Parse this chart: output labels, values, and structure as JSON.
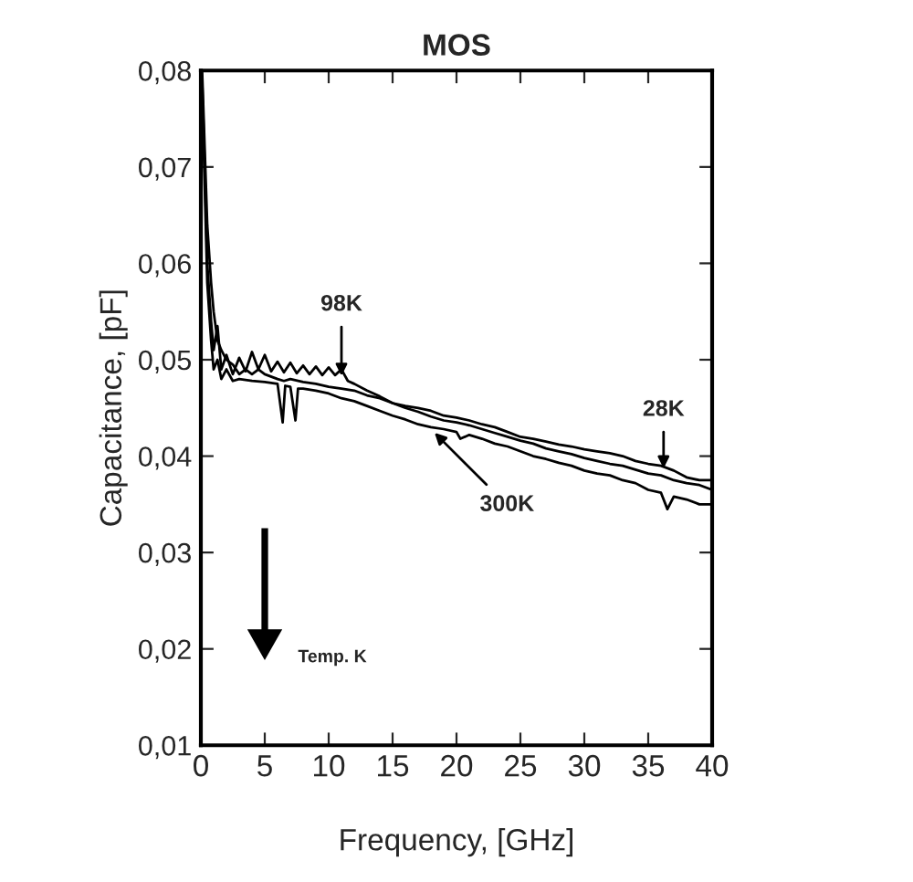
{
  "chart_data": {
    "type": "line",
    "title": "MOS",
    "xlabel": "Frequency, [GHz]",
    "ylabel": "Capacitance, [pF]",
    "xlim": [
      0,
      40
    ],
    "ylim": [
      0.01,
      0.08
    ],
    "xticks": [
      0,
      5,
      10,
      15,
      20,
      25,
      30,
      35,
      40
    ],
    "yticks": [
      {
        "value": 0.01,
        "label": "0,01"
      },
      {
        "value": 0.02,
        "label": "0,02"
      },
      {
        "value": 0.03,
        "label": "0,03"
      },
      {
        "value": 0.04,
        "label": "0,04"
      },
      {
        "value": 0.05,
        "label": "0,05"
      },
      {
        "value": 0.06,
        "label": "0,06"
      },
      {
        "value": 0.07,
        "label": "0,07"
      },
      {
        "value": 0.08,
        "label": "0,08"
      }
    ],
    "grid": false,
    "marker": "none",
    "line_style": "solid",
    "series": [
      {
        "color": "#000000",
        "x": [
          0.1,
          0.3,
          0.5,
          0.8,
          1,
          1.3,
          1.6,
          2,
          2.5,
          3,
          3.5,
          4,
          4.5,
          5,
          6,
          6.5,
          7,
          8,
          9,
          10,
          11,
          12,
          13,
          14,
          15,
          16,
          17,
          18,
          19,
          20,
          21,
          22,
          23,
          24,
          25,
          26,
          27,
          28,
          29,
          30,
          31,
          32,
          33,
          34,
          35,
          36,
          37,
          38,
          39,
          40
        ],
        "values": [
          0.08,
          0.072,
          0.064,
          0.058,
          0.055,
          0.052,
          0.051,
          0.05,
          0.0495,
          0.0485,
          0.049,
          0.0485,
          0.049,
          0.0485,
          0.048,
          0.0478,
          0.048,
          0.0477,
          0.0475,
          0.0472,
          0.047,
          0.0468,
          0.0463,
          0.046,
          0.0455,
          0.0452,
          0.045,
          0.0447,
          0.0442,
          0.044,
          0.0437,
          0.0433,
          0.043,
          0.0425,
          0.042,
          0.0418,
          0.0415,
          0.0412,
          0.041,
          0.0407,
          0.0405,
          0.0403,
          0.04,
          0.0395,
          0.0392,
          0.039,
          0.0385,
          0.0378,
          0.0375,
          0.0375
        ]
      },
      {
        "color": "#000000",
        "x": [
          0.1,
          0.3,
          0.5,
          0.8,
          1,
          1.3,
          1.6,
          2,
          2.5,
          3,
          3.5,
          4,
          4.5,
          5,
          5.5,
          6,
          6.5,
          7,
          7.5,
          8,
          8.5,
          9,
          9.5,
          10,
          10.5,
          11,
          11.5,
          12,
          13,
          14,
          15,
          16,
          17,
          18,
          19,
          20,
          21,
          22,
          23,
          24,
          25,
          26,
          27,
          28,
          29,
          30,
          31,
          32,
          33,
          34,
          35,
          36,
          37,
          38,
          39,
          40
        ],
        "values": [
          0.079,
          0.07,
          0.06,
          0.054,
          0.051,
          0.0535,
          0.049,
          0.0505,
          0.0485,
          0.0502,
          0.0488,
          0.0508,
          0.049,
          0.0505,
          0.0488,
          0.0498,
          0.0487,
          0.0497,
          0.0486,
          0.0494,
          0.0485,
          0.0493,
          0.0484,
          0.0492,
          0.0484,
          0.049,
          0.0478,
          0.0475,
          0.0468,
          0.0462,
          0.0455,
          0.045,
          0.0446,
          0.0441,
          0.0437,
          0.0435,
          0.0432,
          0.0428,
          0.0424,
          0.042,
          0.0416,
          0.0413,
          0.0408,
          0.0405,
          0.0402,
          0.0398,
          0.0395,
          0.0392,
          0.039,
          0.0386,
          0.0382,
          0.038,
          0.0375,
          0.0372,
          0.037,
          0.0365
        ]
      },
      {
        "color": "#000000",
        "x": [
          0.1,
          0.3,
          0.5,
          0.8,
          1,
          1.3,
          1.6,
          2,
          2.5,
          3,
          4,
          5,
          6,
          6.4,
          6.6,
          7,
          7.4,
          7.6,
          8,
          9,
          10,
          11,
          12,
          13,
          14,
          15,
          16,
          17,
          18,
          19,
          20,
          20.3,
          21,
          22,
          23,
          24,
          25,
          26,
          27,
          28,
          29,
          30,
          31,
          32,
          33,
          34,
          35,
          36,
          36.5,
          37,
          38,
          39,
          40
        ],
        "values": [
          0.078,
          0.068,
          0.058,
          0.052,
          0.049,
          0.05,
          0.048,
          0.049,
          0.0478,
          0.048,
          0.0478,
          0.0477,
          0.0475,
          0.0435,
          0.0473,
          0.0472,
          0.0437,
          0.047,
          0.047,
          0.0468,
          0.0465,
          0.046,
          0.0457,
          0.0452,
          0.0447,
          0.0442,
          0.0438,
          0.0433,
          0.043,
          0.0428,
          0.0425,
          0.0418,
          0.0422,
          0.0418,
          0.0413,
          0.041,
          0.0405,
          0.04,
          0.0397,
          0.0393,
          0.039,
          0.0385,
          0.0382,
          0.038,
          0.0375,
          0.0372,
          0.0365,
          0.0362,
          0.0345,
          0.0358,
          0.0355,
          0.035,
          0.035
        ]
      }
    ],
    "annotations": [
      {
        "text": "98K",
        "x": 11,
        "y": 0.0478
      },
      {
        "text": "300K",
        "x": 18,
        "y": 0.0428
      },
      {
        "text": "28K",
        "x": 36.2,
        "y": 0.0382
      },
      "Temp. K"
    ]
  }
}
